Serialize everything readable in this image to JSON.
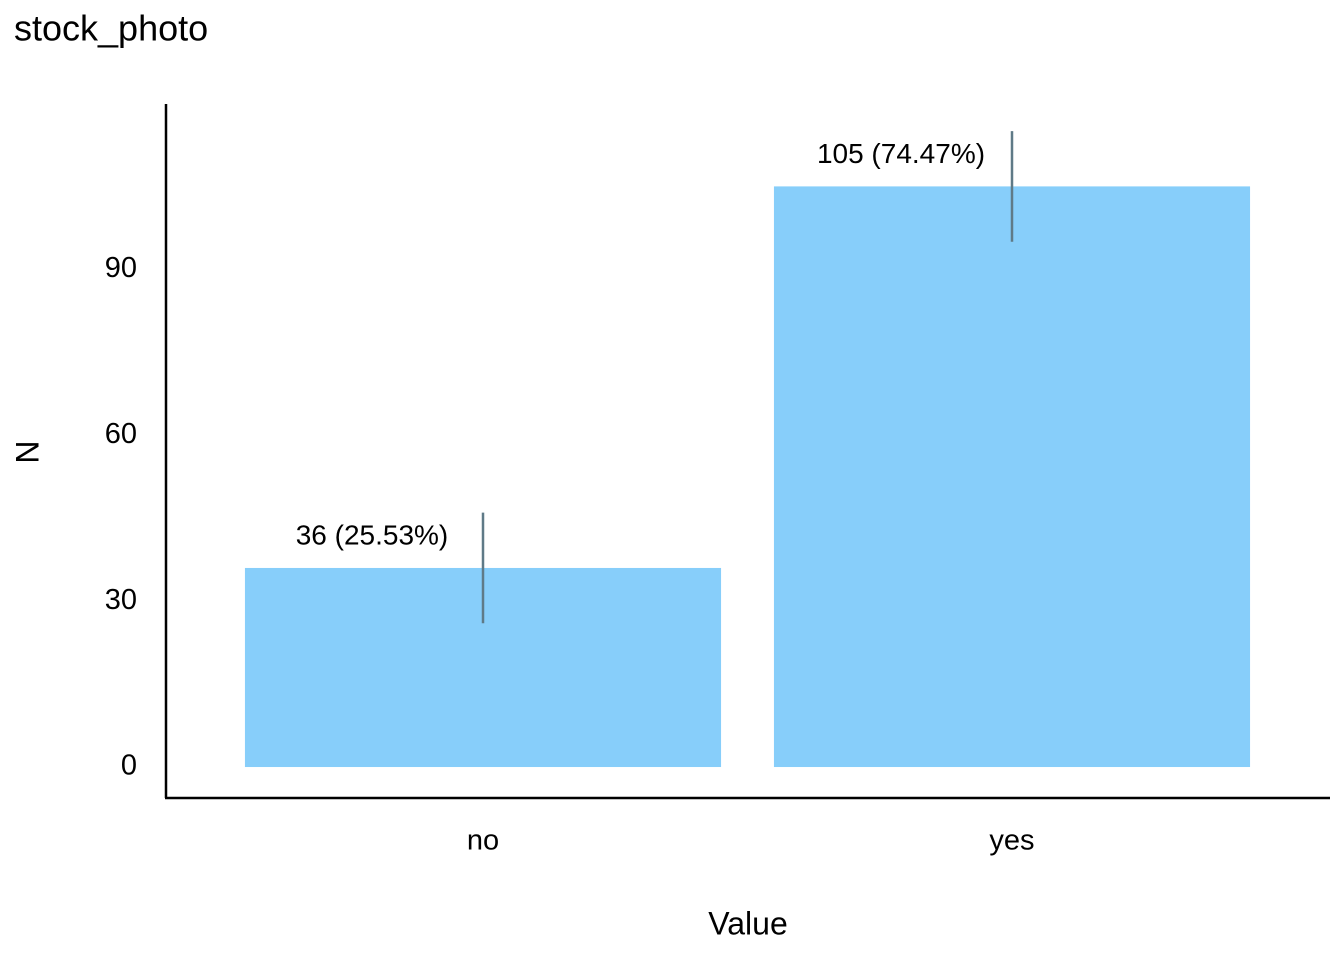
{
  "chart_data": {
    "type": "bar",
    "title": "stock_photo",
    "x_label": "Value",
    "y_label": "N",
    "categories": [
      "no",
      "yes"
    ],
    "values": [
      36,
      105
    ],
    "value_labels": [
      "36 (25.53%)",
      "105 (74.47%)"
    ],
    "errors": [
      10,
      10
    ],
    "color": "#87cefa",
    "error_color": "#5f7a87",
    "ylim": [
      -5.6,
      119.9
    ],
    "yticks": [
      0,
      30,
      60,
      90
    ],
    "grid": false
  }
}
